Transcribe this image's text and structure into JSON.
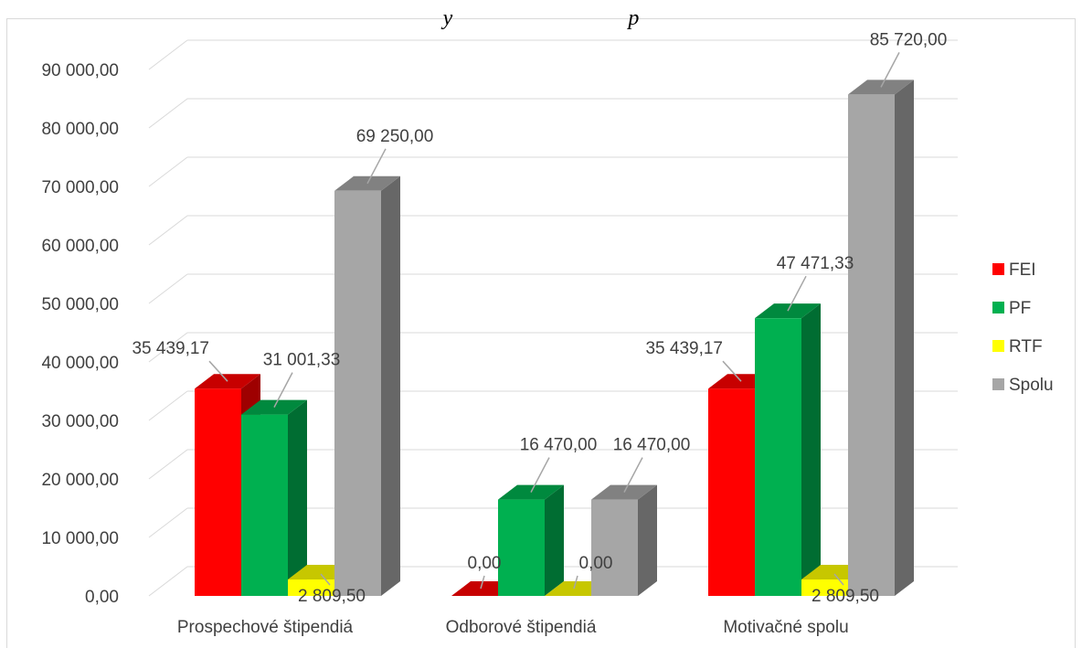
{
  "title_fragment": "y                                p",
  "chart_data": {
    "type": "bar",
    "title": "",
    "xlabel": "",
    "ylabel": "",
    "categories": [
      "Prospechové štipendiá",
      "Odborové štipendiá",
      "Motivačné spolu"
    ],
    "ylim": [
      0,
      90000
    ],
    "y_ticks": [
      "0,00",
      "10 000,00",
      "20 000,00",
      "30 000,00",
      "40 000,00",
      "50 000,00",
      "60 000,00",
      "70 000,00",
      "80 000,00",
      "90 000,00"
    ],
    "grid": true,
    "legend_position": "right",
    "series": [
      {
        "name": "FEI",
        "color": "#ff0000",
        "values": [
          35439.17,
          0,
          35439.17
        ],
        "labels": [
          "35 439,17",
          "0,00",
          "35 439,17"
        ]
      },
      {
        "name": "PF",
        "color": "#00b050",
        "values": [
          31001.33,
          16470.0,
          47471.33
        ],
        "labels": [
          "31 001,33",
          "16 470,00",
          "47 471,33"
        ]
      },
      {
        "name": "RTF",
        "color": "#ffff00",
        "values": [
          2809.5,
          0,
          2809.5
        ],
        "labels": [
          "2 809,50",
          "0,00",
          "2 809,50"
        ]
      },
      {
        "name": "Spolu",
        "color": "#a6a6a6",
        "values": [
          69250.0,
          16470.0,
          85720.0
        ],
        "labels": [
          "69 250,00",
          "16 470,00",
          "85 720,00"
        ]
      }
    ]
  }
}
